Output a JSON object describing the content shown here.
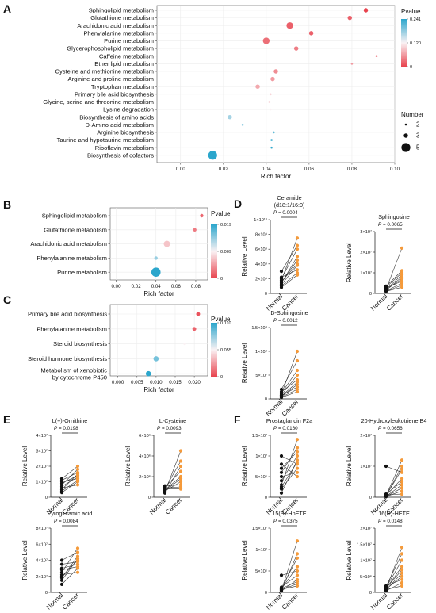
{
  "colors": {
    "high": "#e8434e",
    "mid": "#faf2f4",
    "low": "#2ba6cc",
    "normal": "#111111",
    "cancer": "#f59a3a"
  },
  "panels": [
    {
      "id": "A",
      "type": "bubble",
      "letter": "A",
      "xlabel": "Rich factor",
      "legend_title": "Pvalue",
      "color_ticks": [
        "0.241",
        "0.120",
        "0"
      ],
      "pmax": 0.241,
      "size_title": "Number",
      "size_ticks": [
        {
          "label": "2",
          "n": 2
        },
        {
          "label": "3",
          "n": 3
        },
        {
          "label": "5",
          "n": 5
        }
      ],
      "xticks": [
        {
          "v": 0.0,
          "label": "0.00"
        },
        {
          "v": 0.02,
          "label": "0.02"
        },
        {
          "v": 0.04,
          "label": "0.04"
        },
        {
          "v": 0.06,
          "label": "0.06"
        },
        {
          "v": 0.08,
          "label": "0.08"
        },
        {
          "v": 0.1,
          "label": "0.10"
        }
      ],
      "xlim": [
        -0.011,
        0.1
      ],
      "rows": [
        {
          "label": "Sphingolipid metabolism",
          "x": 0.0865,
          "p": 0.0,
          "n": 3
        },
        {
          "label": "Glutathione metabolism",
          "x": 0.079,
          "p": 0.02,
          "n": 3
        },
        {
          "label": "Arachidonic acid metabolism",
          "x": 0.051,
          "p": 0.02,
          "n": 4
        },
        {
          "label": "Phenylalanine metabolism",
          "x": 0.061,
          "p": 0.02,
          "n": 3
        },
        {
          "label": "Purine metabolism",
          "x": 0.04,
          "p": 0.03,
          "n": 4
        },
        {
          "label": "Glycerophospholipid metabolism",
          "x": 0.054,
          "p": 0.04,
          "n": 3
        },
        {
          "label": "Caffeine metabolism",
          "x": 0.0915,
          "p": 0.05,
          "n": 2
        },
        {
          "label": "Ether lipid metabolism",
          "x": 0.08,
          "p": 0.06,
          "n": 2
        },
        {
          "label": "Cysteine and methionine metabolism",
          "x": 0.0445,
          "p": 0.05,
          "n": 3
        },
        {
          "label": "Arginine and proline metabolism",
          "x": 0.043,
          "p": 0.06,
          "n": 3
        },
        {
          "label": "Tryptophan metabolism",
          "x": 0.036,
          "p": 0.07,
          "n": 3
        },
        {
          "label": "Primary bile acid biosynthesis",
          "x": 0.042,
          "p": 0.1,
          "n": 2
        },
        {
          "label": "Glycine, serine and threonine metabolism",
          "x": 0.0415,
          "p": 0.1,
          "n": 2
        },
        {
          "label": "Lysine degradation",
          "x": 0.042,
          "p": 0.12,
          "n": 2
        },
        {
          "label": "Biosynthesis of amino acids",
          "x": 0.023,
          "p": 0.17,
          "n": 3
        },
        {
          "label": "D-Amino acid metabolism",
          "x": 0.029,
          "p": 0.19,
          "n": 2
        },
        {
          "label": "Arginine biosynthesis",
          "x": 0.0435,
          "p": 0.21,
          "n": 2
        },
        {
          "label": "Taurine and hypotaurine metabolism",
          "x": 0.0425,
          "p": 0.23,
          "n": 2
        },
        {
          "label": "Riboflavin metabolism",
          "x": 0.0425,
          "p": 0.235,
          "n": 2
        },
        {
          "label": "Biosynthesis of cofactors",
          "x": 0.015,
          "p": 0.241,
          "n": 5
        }
      ]
    },
    {
      "id": "B",
      "type": "bubble",
      "letter": "B",
      "xlabel": "Rich factor",
      "legend_title": "Pvalue",
      "color_ticks": [
        "0.019",
        "0.009",
        "0"
      ],
      "pmax": 0.019,
      "xticks": [
        {
          "v": 0.0,
          "label": "0.00"
        },
        {
          "v": 0.02,
          "label": "0.02"
        },
        {
          "v": 0.04,
          "label": "0.04"
        },
        {
          "v": 0.06,
          "label": "0.06"
        },
        {
          "v": 0.08,
          "label": "0.08"
        }
      ],
      "xlim": [
        -0.006,
        0.092
      ],
      "rows": [
        {
          "label": "Sphingolipid metabolism",
          "x": 0.086,
          "p": 0.002,
          "n": 3
        },
        {
          "label": "Glutathione metabolism",
          "x": 0.079,
          "p": 0.003,
          "n": 3
        },
        {
          "label": "Arachidonic acid metabolism",
          "x": 0.051,
          "p": 0.007,
          "n": 4
        },
        {
          "label": "Phenylalanine metabolism",
          "x": 0.04,
          "p": 0.014,
          "n": 3
        },
        {
          "label": "Purine metabolism",
          "x": 0.04,
          "p": 0.019,
          "n": 5
        }
      ]
    },
    {
      "id": "C",
      "type": "bubble",
      "letter": "C",
      "xlabel": "Rich factor",
      "legend_title": "Pvalue",
      "color_ticks": [
        "0.110",
        "0.055",
        "0"
      ],
      "pmax": 0.11,
      "xticks": [
        {
          "v": 0.0,
          "label": "0.000"
        },
        {
          "v": 0.005,
          "label": "0.005"
        },
        {
          "v": 0.01,
          "label": "0.010"
        },
        {
          "v": 0.015,
          "label": "0.015"
        },
        {
          "v": 0.02,
          "label": "0.020"
        }
      ],
      "xlim": [
        -0.002,
        0.0235
      ],
      "rows": [
        {
          "label": [
            "Primary bile acid biosynthesis"
          ],
          "x": 0.021,
          "p": 0.005,
          "n": 2
        },
        {
          "label": [
            "Phenylalanine metabolism"
          ],
          "x": 0.02,
          "p": 0.01,
          "n": 2
        },
        {
          "label": [
            "Steroid biosynthesis"
          ],
          "x": 0.0175,
          "p": 0.055,
          "n": 1
        },
        {
          "label": [
            "Steroid hormone biosynthesis"
          ],
          "x": 0.01,
          "p": 0.09,
          "n": 3
        },
        {
          "label": [
            "Metabolism of xenobiotic",
            "by cytochrome P450"
          ],
          "x": 0.008,
          "p": 0.11,
          "n": 3
        }
      ]
    }
  ],
  "paired": [
    {
      "letter": "D",
      "title": [
        "Ceramide",
        "(d18:1/16:0)"
      ],
      "p": "= 0.0004",
      "ylabel": "Relative Level",
      "yticks": [
        {
          "v": 0,
          "label": "0"
        },
        {
          "v": 2,
          "label": "2×10⁹"
        },
        {
          "v": 4,
          "label": "4×10⁹"
        },
        {
          "v": 6,
          "label": "6×10⁹"
        },
        {
          "v": 8,
          "label": "8×10⁹"
        },
        {
          "v": 10,
          "label": "1×10¹⁰"
        }
      ],
      "ymax": 10,
      "normal": [
        0.8,
        1.2,
        1.5,
        2.0,
        1.8,
        2.2,
        1.4,
        1.6,
        3.0,
        1.0
      ],
      "cancer": [
        2.5,
        3.8,
        4.5,
        6.0,
        7.5,
        3.2,
        5.0,
        4.0,
        6.5,
        2.8
      ]
    },
    {
      "letter": "",
      "title": [
        "Sphingosine"
      ],
      "p": "= 0.0065",
      "ylabel": "Relative Level",
      "yticks": [
        {
          "v": 0,
          "label": "0"
        },
        {
          "v": 1,
          "label": "1×10⁷"
        },
        {
          "v": 2,
          "label": "2×10⁷"
        },
        {
          "v": 3,
          "label": "3×10⁷"
        }
      ],
      "ymax": 3,
      "normal": [
        0.1,
        0.2,
        0.15,
        0.3,
        0.25,
        0.1,
        0.2,
        0.12,
        0.35,
        0.18
      ],
      "cancer": [
        0.4,
        2.2,
        0.8,
        1.0,
        0.6,
        0.3,
        0.9,
        0.5,
        1.1,
        0.7
      ]
    },
    {
      "letter": "",
      "title": [
        "D-Sphingosine"
      ],
      "p": "= 0.0012",
      "ylabel": "Relative Level",
      "yticks": [
        {
          "v": 0,
          "label": "0"
        },
        {
          "v": 5,
          "label": "5×10⁷"
        },
        {
          "v": 10,
          "label": "1×10⁸"
        },
        {
          "v": 15,
          "label": "1.5×10⁸"
        }
      ],
      "ymax": 15,
      "normal": [
        0.5,
        1.0,
        0.8,
        1.5,
        0.3,
        0.7,
        1.2,
        0.6,
        2.0,
        0.4
      ],
      "cancer": [
        3.0,
        10.0,
        5.0,
        4.0,
        1.5,
        2.5,
        6.0,
        3.5,
        8.0,
        2.0
      ]
    },
    {
      "letter": "E",
      "title": [
        "L(+)-Ornithine"
      ],
      "p": "= 0.0198",
      "ylabel": "Relative Level",
      "yticks": [
        {
          "v": 0,
          "label": "0"
        },
        {
          "v": 1,
          "label": "1×10⁷"
        },
        {
          "v": 2,
          "label": "2×10⁷"
        },
        {
          "v": 3,
          "label": "3×10⁷"
        },
        {
          "v": 4,
          "label": "4×10⁷"
        }
      ],
      "ymax": 4,
      "normal": [
        0.3,
        0.5,
        0.8,
        1.0,
        1.2,
        0.6,
        0.9,
        1.1,
        0.4,
        0.7
      ],
      "cancer": [
        1.0,
        1.5,
        1.8,
        1.2,
        2.0,
        0.8,
        1.4,
        1.6,
        1.1,
        1.3
      ]
    },
    {
      "letter": "",
      "title": [
        "L-Cysteine"
      ],
      "p": "= 0.0093",
      "ylabel": "Relative Level",
      "yticks": [
        {
          "v": 0,
          "label": "0"
        },
        {
          "v": 2,
          "label": "2×10⁶"
        },
        {
          "v": 4,
          "label": "4×10⁶"
        },
        {
          "v": 6,
          "label": "6×10⁶"
        }
      ],
      "ymax": 6,
      "normal": [
        0.5,
        0.8,
        1.0,
        0.6,
        0.9,
        0.7,
        0.4,
        1.1,
        0.8,
        0.6
      ],
      "cancer": [
        4.5,
        3.5,
        2.5,
        1.5,
        1.0,
        2.0,
        3.0,
        1.2,
        0.8,
        1.8
      ]
    },
    {
      "letter": "",
      "title": [
        "Pyroglutamic acid"
      ],
      "p": "= 0.0084",
      "ylabel": "Relative Level",
      "yticks": [
        {
          "v": 0,
          "label": "0"
        },
        {
          "v": 2,
          "label": "2×10⁷"
        },
        {
          "v": 4,
          "label": "4×10⁷"
        },
        {
          "v": 6,
          "label": "6×10⁷"
        },
        {
          "v": 8,
          "label": "8×10⁷"
        }
      ],
      "ymax": 8,
      "normal": [
        1.0,
        2.0,
        2.5,
        3.0,
        1.5,
        2.2,
        3.5,
        1.8,
        2.8,
        4.0
      ],
      "cancer": [
        3.0,
        4.0,
        5.5,
        3.5,
        4.2,
        2.5,
        3.8,
        4.5,
        3.2,
        5.0
      ]
    },
    {
      "letter": "F",
      "title": [
        "Prostaglandin F2a"
      ],
      "p": "= 0.0160",
      "ylabel": "Relative Level",
      "yticks": [
        {
          "v": 0,
          "label": "0"
        },
        {
          "v": 5,
          "label": "5×10⁶"
        },
        {
          "v": 10,
          "label": "1×10⁷"
        },
        {
          "v": 15,
          "label": "1.5×10⁷"
        }
      ],
      "ymax": 15,
      "normal": [
        2,
        4,
        6,
        10,
        3,
        5,
        1,
        7,
        8,
        2.5
      ],
      "cancer": [
        7,
        10,
        12,
        8,
        14,
        6,
        9,
        11,
        5,
        8.5
      ]
    },
    {
      "letter": "",
      "title": [
        "20-Hydroxyleukotriene B4"
      ],
      "p": "= 0.0656",
      "ylabel": "Relative Level",
      "yticks": [
        {
          "v": 0,
          "label": "0"
        },
        {
          "v": 1,
          "label": "1×10⁷"
        },
        {
          "v": 2,
          "label": "2×10⁷"
        }
      ],
      "ymax": 2,
      "normal": [
        0.05,
        0.1,
        0.02,
        1.0,
        0.04,
        0.08,
        0.03,
        0.06,
        0.02,
        0.05
      ],
      "cancer": [
        1.2,
        0.5,
        0.3,
        0.8,
        1.0,
        0.1,
        0.4,
        0.6,
        0.2,
        0.9
      ]
    },
    {
      "letter": "",
      "title": [
        "15(S)-HpETE"
      ],
      "p": "= 0.0375",
      "ylabel": "Relative Level",
      "yticks": [
        {
          "v": 0,
          "label": "0"
        },
        {
          "v": 5,
          "label": "5×10⁶"
        },
        {
          "v": 10,
          "label": "1×10⁷"
        },
        {
          "v": 15,
          "label": "1.5×10⁷"
        }
      ],
      "ymax": 15,
      "normal": [
        0.5,
        1.0,
        4.0,
        0.3,
        0.8,
        0.6,
        1.2,
        0.4,
        0.7,
        0.9
      ],
      "cancer": [
        12,
        8,
        5,
        3,
        6,
        2,
        4,
        9,
        1.5,
        2.5
      ]
    },
    {
      "letter": "",
      "title": [
        "16(R)-HETE"
      ],
      "p": "= 0.0148",
      "ylabel": "Relative Level",
      "yticks": [
        {
          "v": 0,
          "label": "0"
        },
        {
          "v": 5,
          "label": "5×10⁶"
        },
        {
          "v": 10,
          "label": "1×10⁷"
        },
        {
          "v": 15,
          "label": "1.5×10⁷"
        },
        {
          "v": 20,
          "label": "2×10⁷"
        }
      ],
      "ymax": 20,
      "normal": [
        1,
        1.5,
        0.8,
        1.2,
        2,
        0.5,
        1.8,
        1.0,
        0.9,
        1.3
      ],
      "cancer": [
        14,
        10,
        6,
        8,
        4,
        3,
        12,
        5,
        2,
        7
      ]
    }
  ],
  "group_labels": [
    "Normal",
    "Cancer"
  ],
  "p_symbol": "P"
}
